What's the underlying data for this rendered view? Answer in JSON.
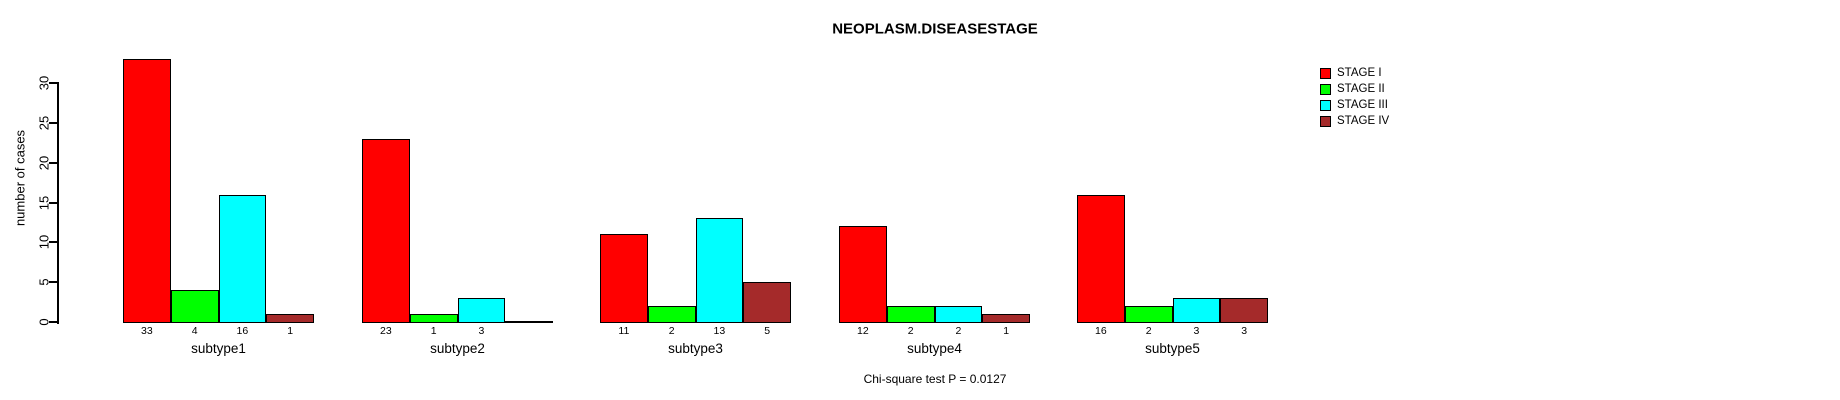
{
  "chart_data": {
    "type": "bar",
    "title": "NEOPLASM.DISEASESTAGE",
    "ylabel": "number of cases",
    "xlabel": "",
    "categories": [
      "subtype1",
      "subtype2",
      "subtype3",
      "subtype4",
      "subtype5"
    ],
    "series": [
      {
        "name": "STAGE I",
        "color": "#ff0000",
        "values": [
          33,
          23,
          11,
          12,
          16
        ]
      },
      {
        "name": "STAGE II",
        "color": "#00ff00",
        "values": [
          4,
          1,
          2,
          2,
          2
        ]
      },
      {
        "name": "STAGE III",
        "color": "#00ffff",
        "values": [
          16,
          3,
          13,
          2,
          3
        ]
      },
      {
        "name": "STAGE IV",
        "color": "#a52a2a",
        "values": [
          1,
          0,
          5,
          1,
          3
        ]
      }
    ],
    "yticks": [
      0,
      5,
      10,
      15,
      20,
      25,
      30
    ],
    "ylim": [
      0,
      33
    ],
    "grid": false,
    "legend_position": "top-right",
    "bar_value_labels": true,
    "show_zero_labels": false,
    "annotation": "Chi-square test P = 0.0127"
  },
  "colors": {
    "background": "#ffffff",
    "axis": "#000000",
    "bar_border": "#000000",
    "text": "#000000"
  }
}
